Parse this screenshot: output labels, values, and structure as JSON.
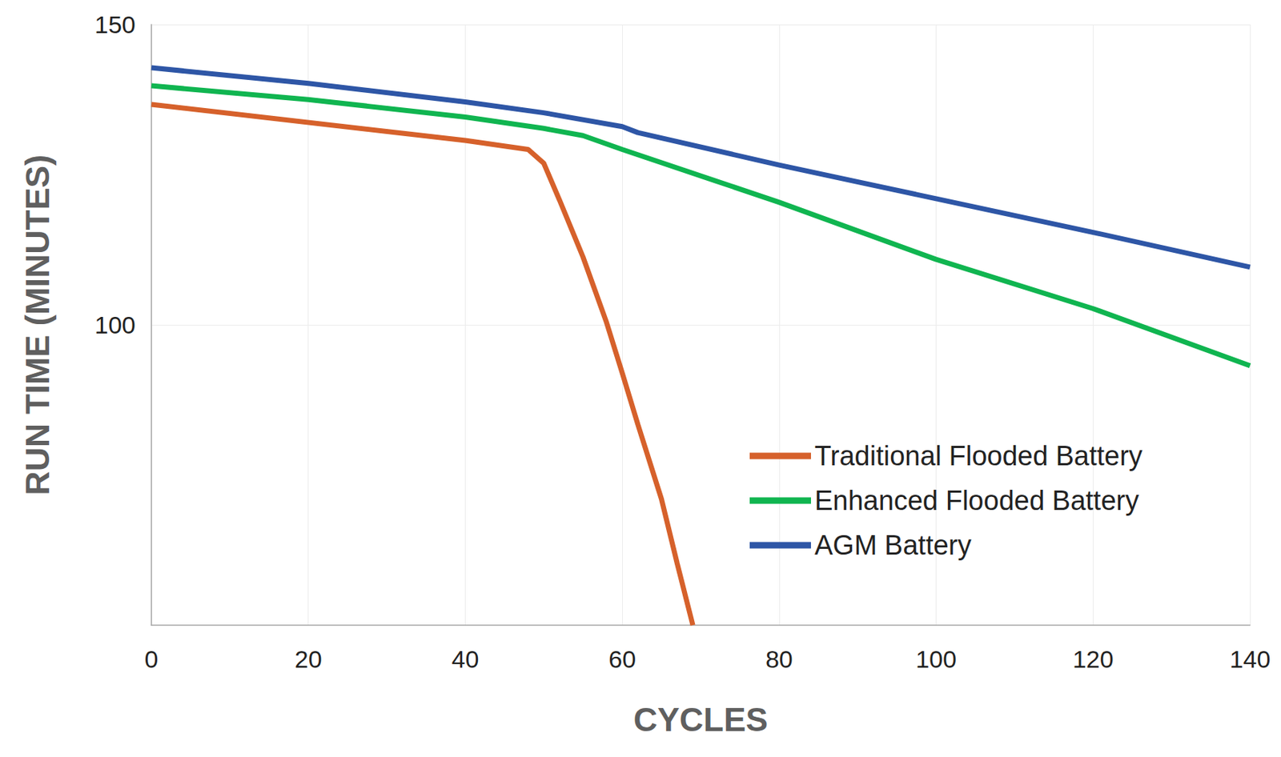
{
  "chart_data": {
    "type": "line",
    "x_label": "CYCLES",
    "y_label": "RUN TIME (MINUTES)",
    "xlim": [
      0,
      140
    ],
    "xticks": [
      0,
      20,
      40,
      60,
      80,
      100,
      120,
      140
    ],
    "ylim": [
      50,
      150
    ],
    "yticks": [
      100,
      150
    ],
    "grid": true,
    "legend": "lower right",
    "series": [
      {
        "name": "Traditional Flooded Battery",
        "color": "#d6612b",
        "x": [
          0,
          40,
          48,
          50,
          52,
          55,
          58,
          60,
          62,
          65,
          67,
          69
        ],
        "values": [
          136.7,
          130.7,
          129.2,
          126.9,
          120.8,
          111.3,
          100.4,
          92,
          83.4,
          71,
          60.3,
          50
        ]
      },
      {
        "name": "Enhanced Flooded Battery",
        "color": "#10b550",
        "x": [
          0,
          20,
          40,
          50,
          55,
          60,
          80,
          100,
          120,
          140
        ],
        "values": [
          139.8,
          137.5,
          134.6,
          132.7,
          131.5,
          129.2,
          120.4,
          110.9,
          102.7,
          93.2
        ]
      },
      {
        "name": "AGM Battery",
        "color": "#2e56a6",
        "x": [
          0,
          20,
          40,
          50,
          60,
          62,
          80,
          100,
          120,
          140
        ],
        "values": [
          142.8,
          140.2,
          137.1,
          135.3,
          133,
          132,
          126.6,
          121,
          115.4,
          109.6
        ]
      }
    ]
  }
}
